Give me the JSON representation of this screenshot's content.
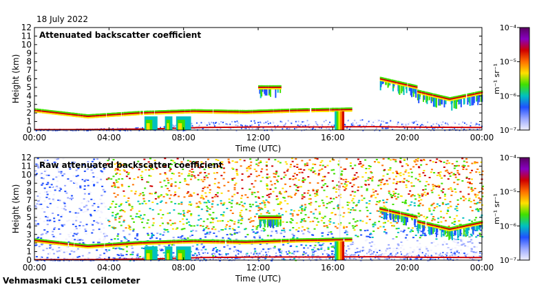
{
  "date": "18 July 2022",
  "footer": "Vehmasmaki CL51 ceilometer",
  "chart_data": [
    {
      "type": "heatmap",
      "title": "Attenuated backscatter coefficient",
      "xlabel": "Time (UTC)",
      "ylabel": "Height (km)",
      "xlim": [
        0,
        24
      ],
      "ylim": [
        0,
        12
      ],
      "xticks": [
        "00:00",
        "04:00",
        "08:00",
        "12:00",
        "16:00",
        "20:00",
        "00:00"
      ],
      "yticks": [
        "0",
        "1",
        "2",
        "3",
        "4",
        "5",
        "6",
        "7",
        "8",
        "9",
        "10",
        "11",
        "12"
      ],
      "colorbar": {
        "label": "m⁻¹ sr⁻¹",
        "ticks": [
          {
            "label": "10⁻⁴",
            "exp": -4
          },
          {
            "label": "10⁻⁵",
            "exp": -5
          },
          {
            "label": "10⁻⁶",
            "exp": -6
          },
          {
            "label": "10⁻⁷",
            "exp": -7
          }
        ],
        "colors": [
          "#5a0060",
          "#8800c0",
          "#d00000",
          "#ff7000",
          "#ffe000",
          "#40e000",
          "#00c0c0",
          "#2050ff",
          "#9aa8ff",
          "#f0f0ff"
        ]
      },
      "layers": [
        {
          "name": "boundary-layer",
          "t_start": 0,
          "t_end": 24,
          "h": [
            0.15,
            0.2,
            0.4,
            1.0,
            1.2,
            1.2,
            1.3,
            1.1,
            1.0
          ],
          "strength": "low"
        },
        {
          "name": "cloud-2km",
          "t_start": 0,
          "t_end": 17,
          "h": [
            2.3,
            1.6,
            2.0,
            2.2,
            2.1,
            2.3,
            2.4
          ],
          "strength": "high"
        },
        {
          "name": "cloud-5km",
          "t_start": 12,
          "t_end": 13.2,
          "h": [
            5.0
          ],
          "strength": "high"
        },
        {
          "name": "cloud-6km",
          "t_start": 18.5,
          "t_end": 20.5,
          "h": [
            6.0,
            5.5,
            5.0
          ],
          "strength": "high"
        },
        {
          "name": "cloud-4.5km",
          "t_start": 20.5,
          "t_end": 24,
          "h": [
            4.5,
            3.6,
            4.4
          ],
          "strength": "high"
        },
        {
          "name": "precip-16h",
          "t_start": 16.1,
          "t_end": 16.6,
          "h": [
            0,
            2.2
          ],
          "strength": "high"
        }
      ]
    },
    {
      "type": "heatmap",
      "title": "Raw attenuated backscatter coefficient",
      "xlabel": "Time (UTC)",
      "ylabel": "Height (km)",
      "xlim": [
        0,
        24
      ],
      "ylim": [
        0,
        12
      ],
      "xticks": [
        "00:00",
        "04:00",
        "08:00",
        "12:00",
        "16:00",
        "20:00",
        "00:00"
      ],
      "yticks": [
        "0",
        "1",
        "2",
        "3",
        "4",
        "5",
        "6",
        "7",
        "8",
        "9",
        "10",
        "11",
        "12"
      ],
      "colorbar": {
        "label": "m⁻¹ sr⁻¹",
        "ticks": [
          {
            "label": "10⁻⁴",
            "exp": -4
          },
          {
            "label": "10⁻⁵",
            "exp": -5
          },
          {
            "label": "10⁻⁶",
            "exp": -6
          },
          {
            "label": "10⁻⁷",
            "exp": -7
          }
        ],
        "colors": [
          "#5a0060",
          "#8800c0",
          "#d00000",
          "#ff7000",
          "#ffe000",
          "#40e000",
          "#00c0c0",
          "#2050ff",
          "#9aa8ff",
          "#f0f0ff"
        ]
      },
      "noise_field": "dense",
      "layers": [
        {
          "name": "boundary-layer",
          "t_start": 0,
          "t_end": 24,
          "h": [
            0.15,
            0.2,
            0.4,
            1.0,
            1.2,
            1.2,
            1.3,
            1.1,
            1.0
          ],
          "strength": "low"
        },
        {
          "name": "cloud-2km",
          "t_start": 0,
          "t_end": 17,
          "h": [
            2.3,
            1.6,
            2.0,
            2.2,
            2.1,
            2.3,
            2.4
          ],
          "strength": "high"
        },
        {
          "name": "cloud-5km",
          "t_start": 12,
          "t_end": 13.2,
          "h": [
            5.0
          ],
          "strength": "high"
        },
        {
          "name": "cloud-6km",
          "t_start": 18.5,
          "t_end": 20.5,
          "h": [
            6.0,
            5.5,
            5.0
          ],
          "strength": "high"
        },
        {
          "name": "cloud-4.5km",
          "t_start": 20.5,
          "t_end": 24,
          "h": [
            4.5,
            3.6,
            4.4
          ],
          "strength": "high"
        },
        {
          "name": "precip-16h",
          "t_start": 16.1,
          "t_end": 16.6,
          "h": [
            0,
            2.2
          ],
          "strength": "high"
        }
      ]
    }
  ]
}
